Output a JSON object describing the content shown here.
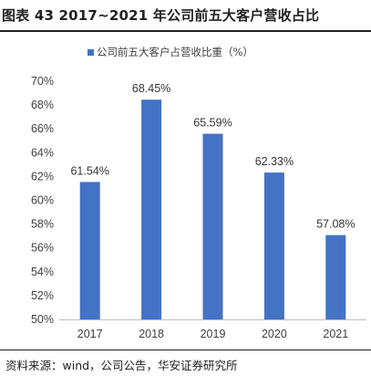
{
  "figure_title": "图表 43 2017~2021 年公司前五大客户营收占比",
  "source_note": "资料来源：wind，公司公告，华安证券研究所",
  "chart_data": {
    "type": "bar",
    "categories": [
      "2017",
      "2018",
      "2019",
      "2020",
      "2021"
    ],
    "series": [
      {
        "name": "公司前五大客户占营收比重（%）",
        "values": [
          61.54,
          68.45,
          65.59,
          62.33,
          57.08
        ],
        "color": "#4472C4"
      }
    ],
    "data_labels": [
      "61.54%",
      "68.45%",
      "65.59%",
      "62.33%",
      "57.08%"
    ],
    "y_ticks": [
      "50%",
      "52%",
      "54%",
      "56%",
      "58%",
      "60%",
      "62%",
      "64%",
      "66%",
      "68%",
      "70%"
    ],
    "ylim": [
      50,
      70
    ],
    "xlabel": "",
    "ylabel": "",
    "grid": false,
    "legend_position": "top"
  }
}
